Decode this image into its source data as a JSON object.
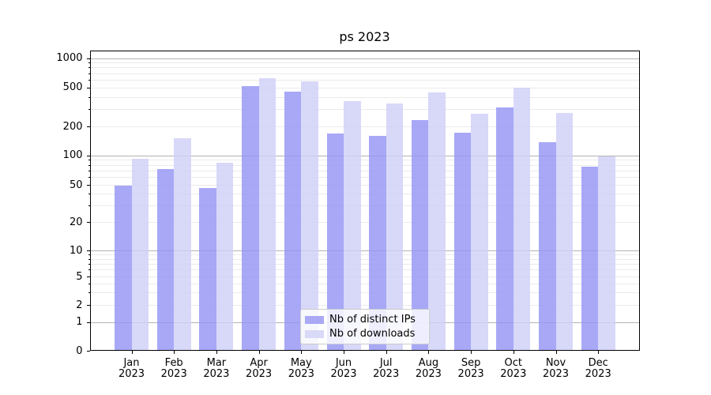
{
  "chart_data": {
    "type": "bar",
    "title": "ps 2023",
    "xlabel": "",
    "ylabel": "",
    "yscale": "symlog",
    "grid": true,
    "legend_position": "lower center",
    "year_label": "2023",
    "categories": [
      "Jan",
      "Feb",
      "Mar",
      "Apr",
      "May",
      "Jun",
      "Jul",
      "Aug",
      "Sep",
      "Oct",
      "Nov",
      "Dec"
    ],
    "y_ticks": [
      0,
      1,
      2,
      5,
      10,
      20,
      50,
      100,
      200,
      500,
      1000
    ],
    "ylim": [
      0,
      1200
    ],
    "series": [
      {
        "name": "Nb of distinct IPs",
        "color": "#9595f5",
        "legend_color": "#a9a9f6",
        "values": [
          49,
          72,
          46,
          510,
          455,
          168,
          158,
          233,
          171,
          310,
          137,
          76
        ]
      },
      {
        "name": "Nb of downloads",
        "color": "#cfcff8",
        "legend_color": "#d9d9f8",
        "values": [
          92,
          150,
          84,
          625,
          580,
          360,
          344,
          440,
          270,
          500,
          272,
          98
        ]
      }
    ],
    "colors": {
      "major_grid": "#b3b3b3",
      "minor_grid": "#ebebeb",
      "spine": "#000000",
      "background": "#ffffff"
    }
  }
}
